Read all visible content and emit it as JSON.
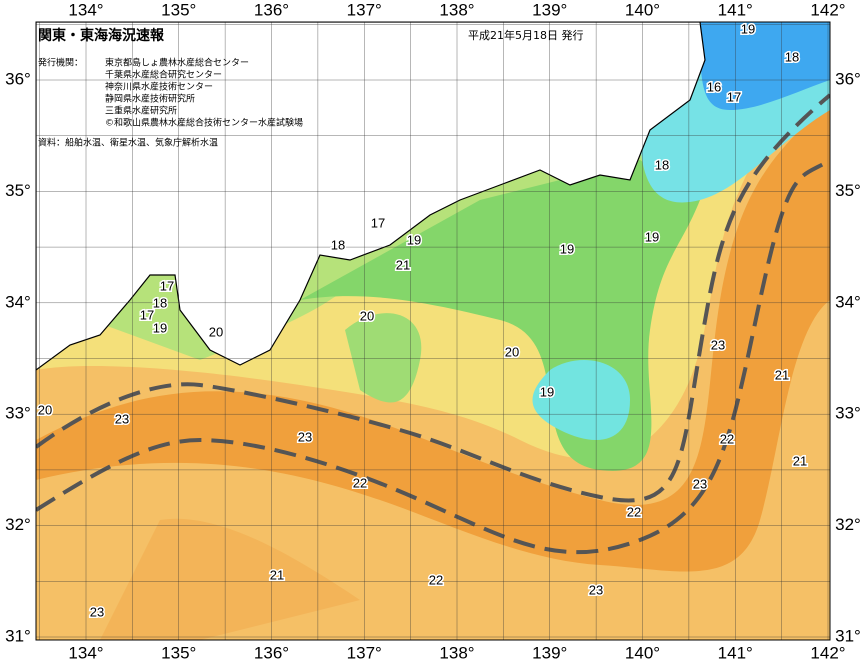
{
  "header": {
    "title": "関東・東海海況速報",
    "date": "平成21年5月18日 発行"
  },
  "issuers": {
    "label": "発行機関：",
    "items": [
      "東京都島しょ農林水産総合センター",
      "千葉県水産総合研究センター",
      "神奈川県水産技術センター",
      "静岡県水産技術研究所",
      "三重県水産研究所",
      "©和歌山県農林水産総合技術センター水産試験場"
    ]
  },
  "source": "資料：船舶水温、衛星水温、気象庁解析水温",
  "axes": {
    "longitude": [
      "134°",
      "135°",
      "136°",
      "137°",
      "138°",
      "139°",
      "140°",
      "141°",
      "142°"
    ],
    "latitude": [
      "36°",
      "35°",
      "34°",
      "33°",
      "32°",
      "31°"
    ]
  },
  "contour_labels": [
    "19",
    "18",
    "16",
    "17",
    "18",
    "19",
    "17",
    "18",
    "19",
    "21",
    "19",
    "17",
    "18",
    "17",
    "19",
    "20",
    "20",
    "20",
    "19",
    "23",
    "21",
    "22",
    "21",
    "23",
    "22",
    "20",
    "23",
    "23",
    "22",
    "21",
    "22",
    "23",
    "23"
  ]
}
